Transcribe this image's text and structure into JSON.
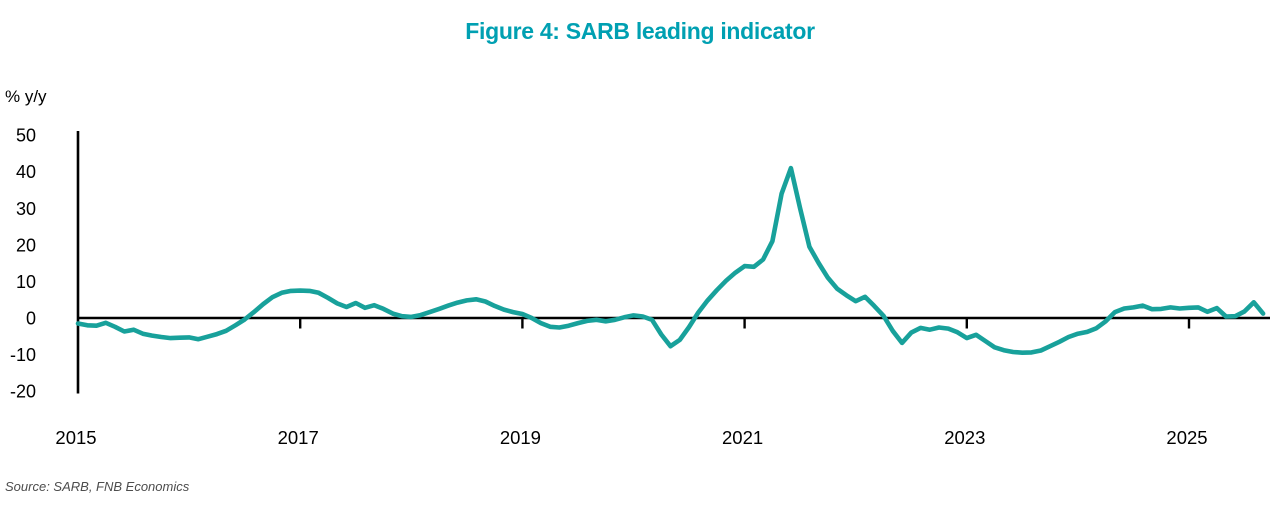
{
  "page": {
    "title": "Figure 4: SARB leading indicator",
    "y_axis_label": "% y/y",
    "source_note": "Source: SARB, FNB Economics"
  },
  "colors": {
    "title": "#00a0b2",
    "line": "#18a19b",
    "axis": "#000000",
    "source_text": "#4d4d4d"
  },
  "chart_data": {
    "type": "line",
    "title": "Figure 4: SARB leading indicator",
    "ylabel": "% y/y",
    "xlabel": "",
    "grid": false,
    "zero_line": true,
    "legend": "none",
    "ylim": [
      -20,
      51
    ],
    "xlim": [
      2015.0,
      2025.75
    ],
    "y_ticks": [
      50,
      40,
      30,
      20,
      10,
      0,
      -10,
      -20
    ],
    "x_ticks": [
      2015,
      2017,
      2019,
      2021,
      2023,
      2025
    ],
    "x_start_year": 2015.0,
    "x_step_years": 0.0833333,
    "frequency": "monthly",
    "series": [
      {
        "name": "SARB leading indicator (% y/y)",
        "color": "#18a19b",
        "values": [
          -1.5,
          -2.0,
          -2.1,
          -1.3,
          -2.4,
          -3.7,
          -3.2,
          -4.3,
          -4.8,
          -5.2,
          -5.5,
          -5.4,
          -5.3,
          -5.8,
          -5.1,
          -4.4,
          -3.5,
          -2.0,
          -0.4,
          1.6,
          3.8,
          5.7,
          6.9,
          7.4,
          7.5,
          7.4,
          6.9,
          5.5,
          4.0,
          3.0,
          4.1,
          2.8,
          3.5,
          2.5,
          1.2,
          0.5,
          0.3,
          0.8,
          1.6,
          2.5,
          3.4,
          4.2,
          4.8,
          5.1,
          4.5,
          3.3,
          2.3,
          1.6,
          1.1,
          0.0,
          -1.4,
          -2.4,
          -2.6,
          -2.1,
          -1.4,
          -0.8,
          -0.5,
          -0.9,
          -0.5,
          0.2,
          0.7,
          0.4,
          -0.5,
          -4.5,
          -7.7,
          -6.0,
          -2.5,
          1.5,
          4.8,
          7.6,
          10.2,
          12.4,
          14.2,
          14.0,
          16.0,
          21.0,
          34.0,
          41.0,
          30.0,
          19.5,
          15.0,
          11.0,
          8.0,
          6.2,
          4.6,
          5.8,
          3.3,
          0.6,
          -3.5,
          -6.8,
          -4.0,
          -2.7,
          -3.2,
          -2.6,
          -2.9,
          -3.9,
          -5.5,
          -4.6,
          -6.3,
          -8.0,
          -8.8,
          -9.3,
          -9.5,
          -9.4,
          -8.9,
          -7.7,
          -6.5,
          -5.2,
          -4.3,
          -3.8,
          -2.8,
          -0.9,
          1.6,
          2.6,
          2.9,
          3.4,
          2.4,
          2.5,
          2.9,
          2.6,
          2.8,
          2.9,
          1.7,
          2.7,
          0.4,
          0.5,
          1.8,
          4.3,
          1.2
        ]
      }
    ]
  }
}
